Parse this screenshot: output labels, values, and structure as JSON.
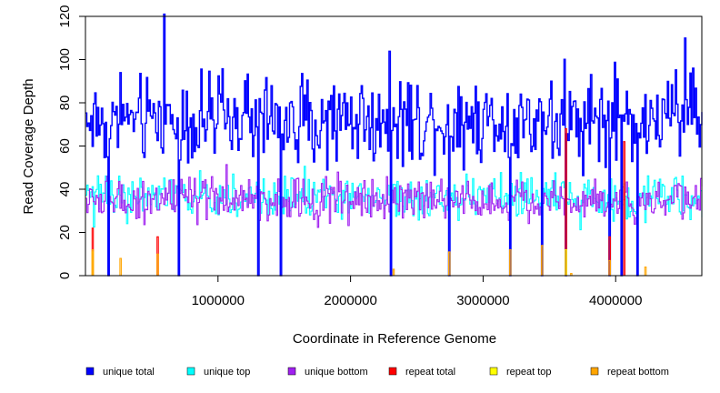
{
  "chart_data": {
    "type": "line",
    "title": "",
    "xlabel": "Coordinate in Reference Genome",
    "ylabel": "Read Coverage Depth",
    "xlim": [
      0,
      4650000
    ],
    "ylim": [
      0,
      120
    ],
    "x_ticks": [
      1000000,
      2000000,
      3000000,
      4000000
    ],
    "x_tick_labels": [
      "1000000",
      "2000000",
      "3000000",
      "4000000"
    ],
    "y_ticks": [
      0,
      20,
      40,
      60,
      80,
      100,
      120
    ],
    "y_tick_labels": [
      "0",
      "20",
      "40",
      "60",
      "80",
      "100",
      "120"
    ],
    "grid": false,
    "legend_position": "bottom",
    "bin_size": 10000,
    "series": [
      {
        "name": "unique total",
        "color": "#0000ff",
        "level": 72,
        "spread": 12,
        "spikes": [
          [
            590000,
            121
          ],
          [
            4520000,
            110
          ],
          [
            260000,
            94
          ],
          [
            4580000,
            96
          ]
        ]
      },
      {
        "name": "unique top",
        "color": "#00ffff",
        "level": 36,
        "spread": 6,
        "spikes": []
      },
      {
        "name": "unique bottom",
        "color": "#a020f0",
        "level": 35,
        "spread": 6,
        "spikes": []
      },
      {
        "name": "repeat total",
        "color": "#ff0000",
        "level": 0,
        "spread": 0,
        "spikes": [
          [
            50000,
            22
          ],
          [
            540000,
            18
          ],
          [
            3620000,
            68
          ],
          [
            3950000,
            18
          ],
          [
            4060000,
            62
          ]
        ]
      },
      {
        "name": "repeat top",
        "color": "#ffff00",
        "level": 0,
        "spread": 0,
        "spikes": [
          [
            50000,
            11
          ],
          [
            3620000,
            12
          ]
        ]
      },
      {
        "name": "repeat bottom",
        "color": "#ffa500",
        "level": 0,
        "spread": 0,
        "spikes": [
          [
            50000,
            12
          ],
          [
            260000,
            8
          ],
          [
            540000,
            10
          ],
          [
            2320000,
            3
          ],
          [
            2740000,
            11
          ],
          [
            3200000,
            12
          ],
          [
            3440000,
            14
          ],
          [
            3660000,
            1
          ],
          [
            3950000,
            7
          ],
          [
            4220000,
            4
          ]
        ]
      }
    ],
    "dropouts": [
      170000,
      700000,
      1300000,
      1470000,
      2300000,
      2740000,
      3200000,
      3440000,
      3620000,
      3950000,
      4040000,
      4160000
    ]
  }
}
